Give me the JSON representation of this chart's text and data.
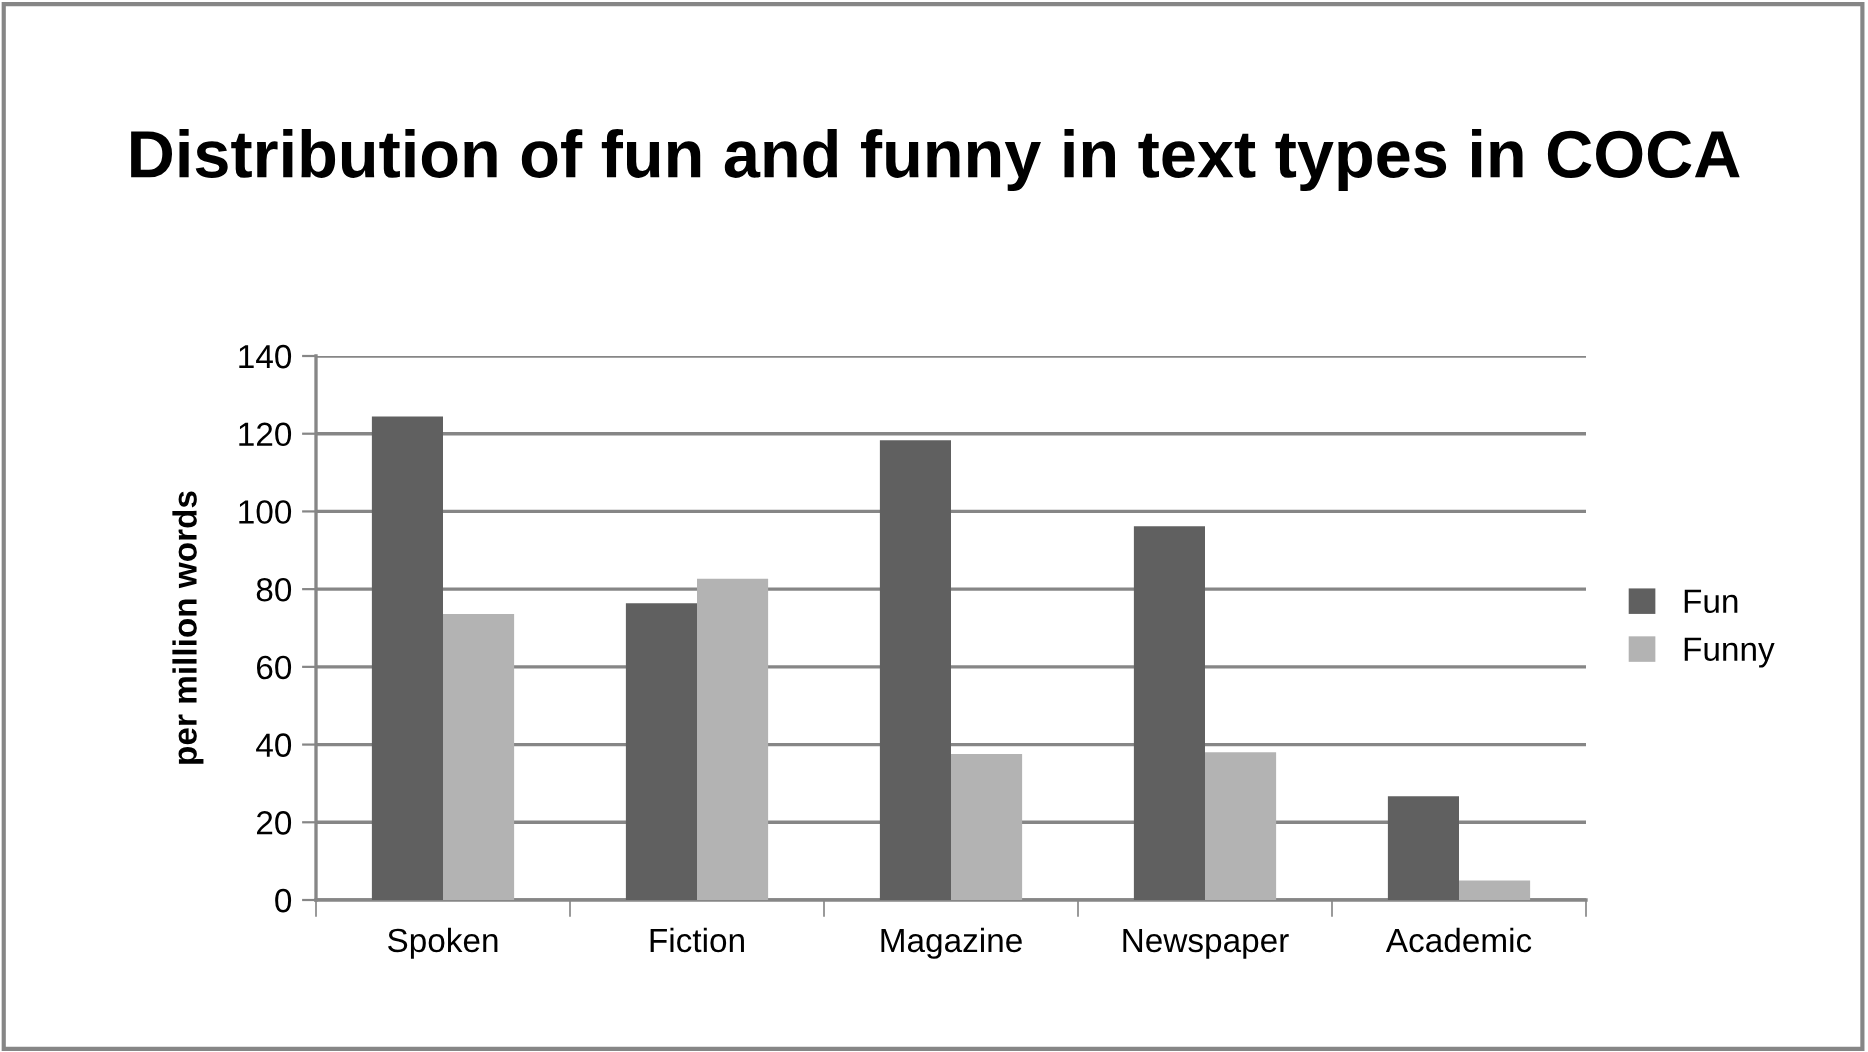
{
  "chart_data": {
    "type": "bar",
    "title": "Distribution of fun and funny in text types in COCA",
    "ylabel": "per million words",
    "categories": [
      "Spoken",
      "Fiction",
      "Magazine",
      "Newspaper",
      "Academic"
    ],
    "series": [
      {
        "name": "Fun",
        "color": "#606060",
        "values": [
          124.4,
          76.4,
          118.3,
          96.2,
          26.7
        ]
      },
      {
        "name": "Funny",
        "color": "#b3b3b3",
        "values": [
          73.6,
          82.7,
          37.6,
          38.0,
          5.0
        ]
      }
    ],
    "ylim": [
      0,
      140
    ],
    "yticks": [
      0,
      20,
      40,
      60,
      80,
      100,
      120,
      140
    ],
    "grid": "y",
    "legend": "right"
  }
}
